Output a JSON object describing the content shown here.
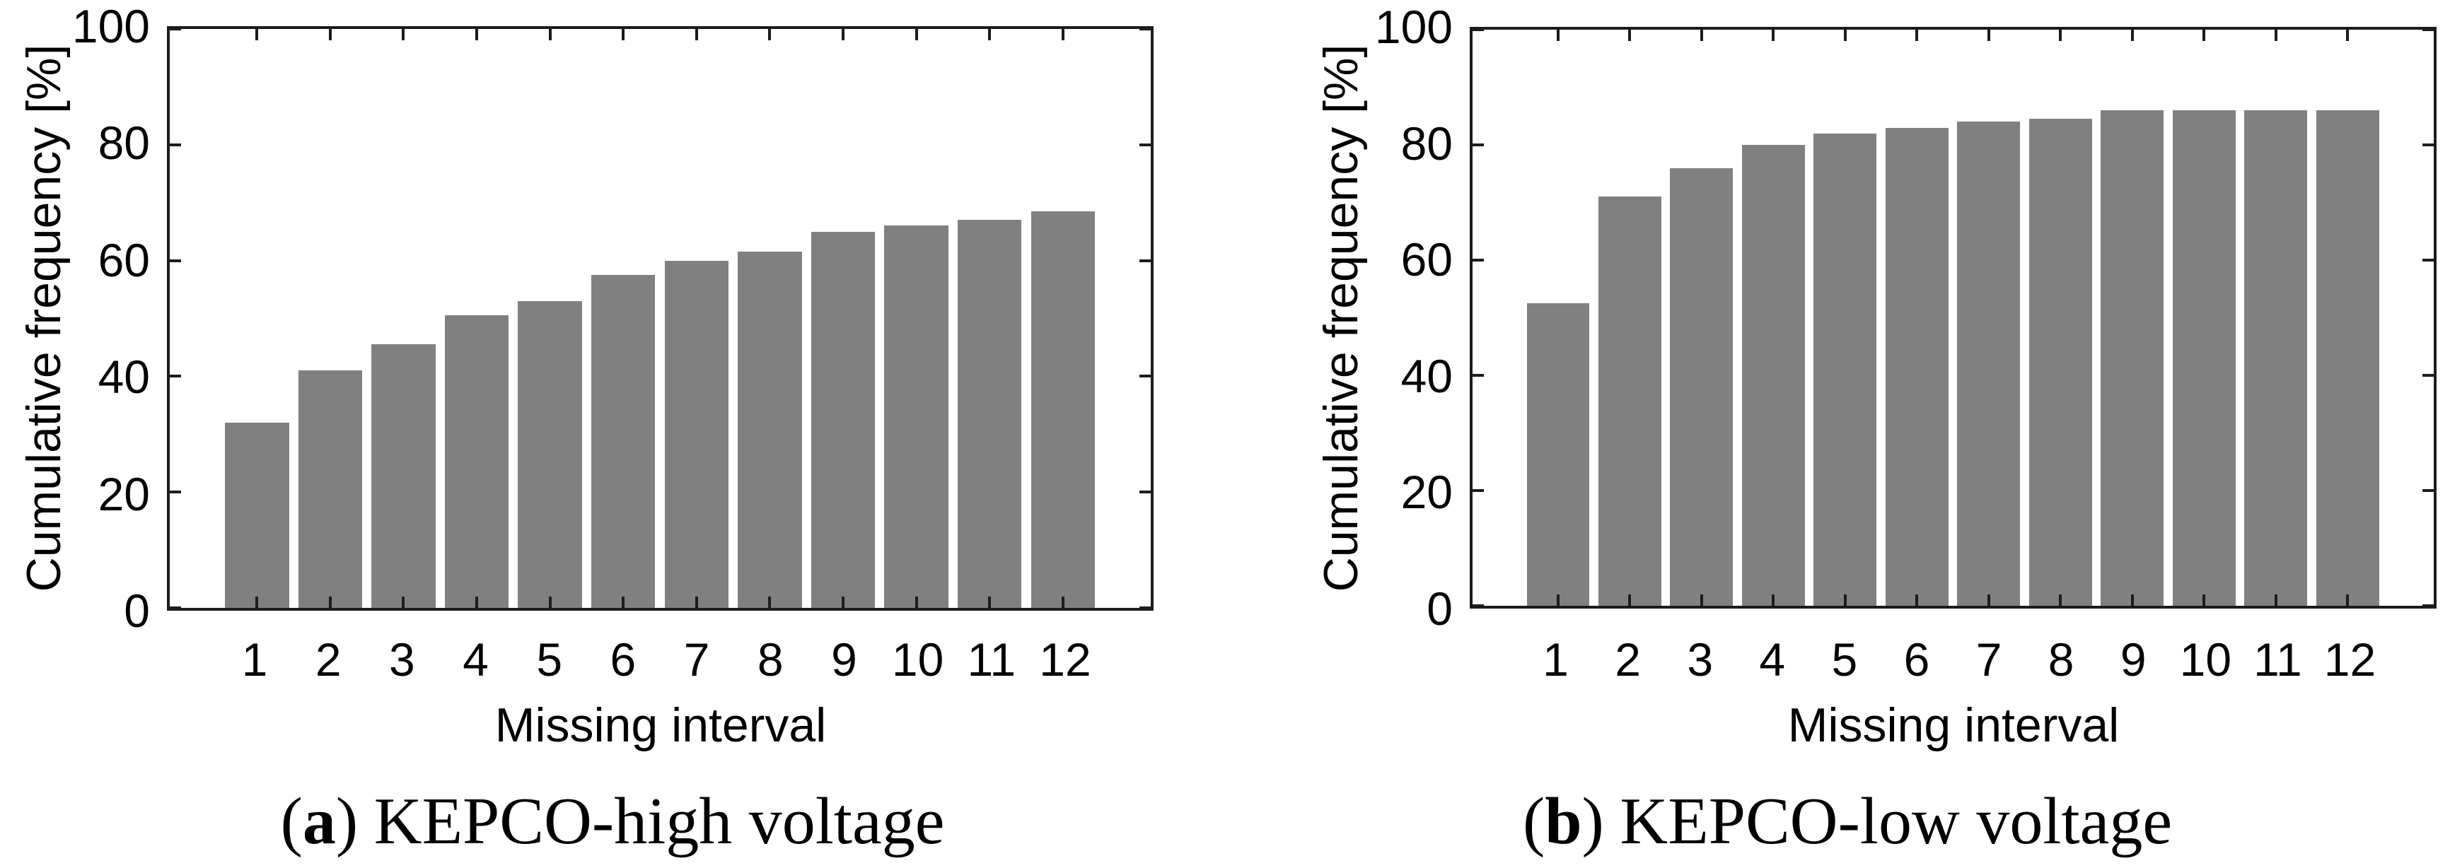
{
  "figure": {
    "background": "#ffffff",
    "bar_color": "#808080",
    "axis_color": "#1c1c1c",
    "text_color": "#000000"
  },
  "chart_data": [
    {
      "type": "bar",
      "panel": "a",
      "caption": {
        "open": "(",
        "marker": "a",
        "close": ")",
        "text": "KEPCO-high voltage"
      },
      "xlabel": "Missing interval",
      "ylabel": "Cumulative frequency [%]",
      "categories": [
        "1",
        "2",
        "3",
        "4",
        "5",
        "6",
        "7",
        "8",
        "9",
        "10",
        "11",
        "12"
      ],
      "values": [
        32,
        41,
        45.5,
        50.5,
        53,
        57.5,
        60,
        61.5,
        65,
        66,
        67,
        68.5
      ],
      "ylim": [
        0,
        100
      ],
      "yticks": [
        0,
        20,
        40,
        60,
        80,
        100
      ],
      "grid": false,
      "legend": "none"
    },
    {
      "type": "bar",
      "panel": "b",
      "caption": {
        "open": "(",
        "marker": "b",
        "close": ")",
        "text": "KEPCO-low voltage"
      },
      "xlabel": "Missing interval",
      "ylabel": "Cumulative frequency [%]",
      "categories": [
        "1",
        "2",
        "3",
        "4",
        "5",
        "6",
        "7",
        "8",
        "9",
        "10",
        "11",
        "12"
      ],
      "values": [
        52.5,
        71,
        76,
        80,
        82,
        83,
        84,
        84.5,
        86,
        86,
        86,
        86
      ],
      "ylim": [
        0,
        100
      ],
      "yticks": [
        0,
        20,
        40,
        60,
        80,
        100
      ],
      "grid": false,
      "legend": "none"
    }
  ]
}
